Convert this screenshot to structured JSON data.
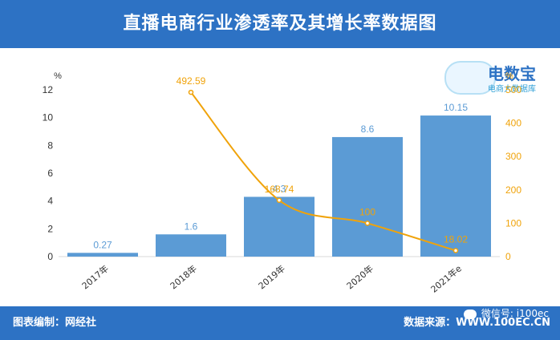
{
  "title": "直播电商行业渗透率及其增长率数据图",
  "footer": {
    "left": "图表编制：网经社",
    "right": "数据来源：WWW.100EC.CN",
    "wechat": "微信号: i100ec"
  },
  "logo": {
    "name": "电数宝",
    "sub": "电商大数据库",
    "icon": "cloud-icon"
  },
  "colors": {
    "header": "#2d72c4",
    "bar": "#5b9bd5",
    "line": "#f0a30a",
    "bar_label": "#5b9bd5",
    "line_label": "#f0a30a"
  },
  "chart_data": {
    "type": "bar",
    "categories": [
      "2017年",
      "2018年",
      "2019年",
      "2020年",
      "2021年e"
    ],
    "series": [
      {
        "values": [
          0.27,
          1.6,
          4.3,
          8.6,
          10.15
        ],
        "axis": "left"
      },
      {
        "values": [
          null,
          492.59,
          168.74,
          100,
          18.02
        ],
        "axis": "right",
        "type": "line"
      }
    ],
    "left_axis": {
      "unit": "%",
      "ylim": [
        0,
        12
      ],
      "ticks": [
        0,
        2,
        4,
        6,
        8,
        10,
        12
      ]
    },
    "right_axis": {
      "unit": "%",
      "ylim": [
        0,
        500
      ],
      "ticks": [
        0,
        100,
        200,
        300,
        400,
        500
      ]
    },
    "grid": false,
    "legend": "none"
  }
}
